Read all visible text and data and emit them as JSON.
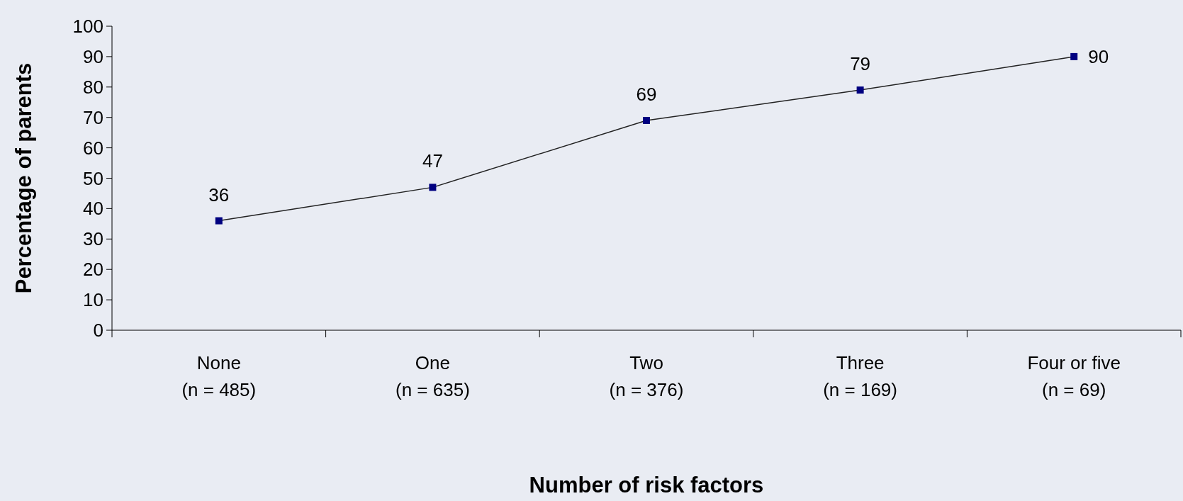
{
  "chart_data": {
    "type": "line",
    "xlabel": "Number of risk factors",
    "ylabel": "Percentage of parents",
    "categories": [
      "None\n(n = 485)",
      "One\n(n = 635)",
      "Two\n(n = 376)",
      "Three\n(n = 169)",
      "Four or five\n(n = 69)"
    ],
    "series": [
      {
        "color": "#000080",
        "values": [
          36,
          47,
          69,
          79,
          90
        ]
      }
    ],
    "ylim": [
      0,
      100
    ],
    "yticks": [
      0,
      10,
      20,
      30,
      40,
      50,
      60,
      70,
      80,
      90,
      100
    ],
    "marker": "square",
    "line_style": "solid",
    "data_labels": true
  }
}
